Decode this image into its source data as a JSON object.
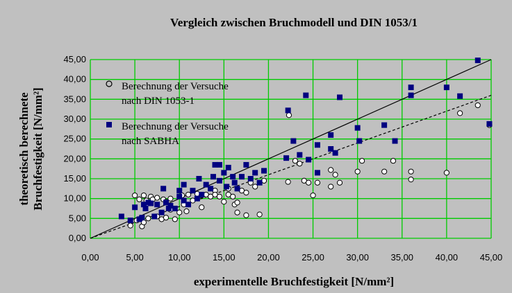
{
  "chart_data": {
    "type": "scatter",
    "title": "Vergleich zwischen Bruchmodell und DIN 1053/1",
    "xlabel": "experimentelle Bruchfestigkeit [N/mm²]",
    "ylabel_lines": [
      "theoretisch berechnete",
      "Bruchfestigkeit [N/mm²]"
    ],
    "xlim": [
      0,
      45
    ],
    "ylim": [
      0,
      45
    ],
    "x_ticks": [
      "0,00",
      "5,00",
      "10,00",
      "15,00",
      "20,00",
      "25,00",
      "30,00",
      "35,00",
      "40,00",
      "45,00"
    ],
    "y_ticks": [
      "0,00",
      "5,00",
      "10,00",
      "15,00",
      "20,00",
      "25,00",
      "30,00",
      "35,00",
      "40,00",
      "45,00"
    ],
    "grid": true,
    "grid_color": "#00cc00",
    "plot_background": "#c0c0c0",
    "legend_position": "top-left",
    "series": [
      {
        "name_lines": [
          "Berechnung der Versuche",
          "nach DIN 1053-1"
        ],
        "marker": "circle-open",
        "color": "#000000",
        "points": [
          [
            4.5,
            3.2
          ],
          [
            5.0,
            10.8
          ],
          [
            5.2,
            4.5
          ],
          [
            5.5,
            9.8
          ],
          [
            5.8,
            3.0
          ],
          [
            6.0,
            4.0
          ],
          [
            6.0,
            10.8
          ],
          [
            6.3,
            9.5
          ],
          [
            6.5,
            5.0
          ],
          [
            6.8,
            10.5
          ],
          [
            7.0,
            9.8
          ],
          [
            7.5,
            5.5
          ],
          [
            7.5,
            10.2
          ],
          [
            8.0,
            4.8
          ],
          [
            8.2,
            9.8
          ],
          [
            8.5,
            9.2
          ],
          [
            8.5,
            5.2
          ],
          [
            9.0,
            7.2
          ],
          [
            9.0,
            10.0
          ],
          [
            9.5,
            4.8
          ],
          [
            10.0,
            6.5
          ],
          [
            10.3,
            10.8
          ],
          [
            10.5,
            8.5
          ],
          [
            10.8,
            6.8
          ],
          [
            11.0,
            11.0
          ],
          [
            11.5,
            9.5
          ],
          [
            12.0,
            11.2
          ],
          [
            12.5,
            7.8
          ],
          [
            12.5,
            10.8
          ],
          [
            13.0,
            11.0
          ],
          [
            13.5,
            10.5
          ],
          [
            14.0,
            12.0
          ],
          [
            14.0,
            11.0
          ],
          [
            14.5,
            10.5
          ],
          [
            15.0,
            9.2
          ],
          [
            15.5,
            11.0
          ],
          [
            15.5,
            12.5
          ],
          [
            16.0,
            10.5
          ],
          [
            16.2,
            8.5
          ],
          [
            16.5,
            6.5
          ],
          [
            16.5,
            9.0
          ],
          [
            17.0,
            12.0
          ],
          [
            17.5,
            11.5
          ],
          [
            17.5,
            5.8
          ],
          [
            18.0,
            14.0
          ],
          [
            18.5,
            13.0
          ],
          [
            19.0,
            6.0
          ],
          [
            19.5,
            14.5
          ],
          [
            22.2,
            14.2
          ],
          [
            22.3,
            31.0
          ],
          [
            23.0,
            19.5
          ],
          [
            23.5,
            18.8
          ],
          [
            24.0,
            14.5
          ],
          [
            24.5,
            14.0
          ],
          [
            25.0,
            10.8
          ],
          [
            25.5,
            14.0
          ],
          [
            27.0,
            17.2
          ],
          [
            27.0,
            13.0
          ],
          [
            27.5,
            16.0
          ],
          [
            28.0,
            14.0
          ],
          [
            30.0,
            16.8
          ],
          [
            30.5,
            19.5
          ],
          [
            33.0,
            16.8
          ],
          [
            34.0,
            19.5
          ],
          [
            36.0,
            16.8
          ],
          [
            36.0,
            14.8
          ],
          [
            40.0,
            16.5
          ],
          [
            41.5,
            31.5
          ],
          [
            43.5,
            33.5
          ],
          [
            44.8,
            28.5
          ]
        ]
      },
      {
        "name_lines": [
          "Berechnung der Versuche",
          "nach SABHA"
        ],
        "marker": "square-filled",
        "color": "#000080",
        "points": [
          [
            3.5,
            5.5
          ],
          [
            4.5,
            4.5
          ],
          [
            5.0,
            7.8
          ],
          [
            5.5,
            4.8
          ],
          [
            5.8,
            5.2
          ],
          [
            6.0,
            8.5
          ],
          [
            6.2,
            7.5
          ],
          [
            6.5,
            9.0
          ],
          [
            6.8,
            8.8
          ],
          [
            7.2,
            5.5
          ],
          [
            7.5,
            8.5
          ],
          [
            8.0,
            6.5
          ],
          [
            8.2,
            12.5
          ],
          [
            8.5,
            9.0
          ],
          [
            8.8,
            7.5
          ],
          [
            9.0,
            8.2
          ],
          [
            9.5,
            7.5
          ],
          [
            10.0,
            10.5
          ],
          [
            10.0,
            12.0
          ],
          [
            10.5,
            9.5
          ],
          [
            10.5,
            13.5
          ],
          [
            11.0,
            8.5
          ],
          [
            11.5,
            12.0
          ],
          [
            12.0,
            10.0
          ],
          [
            12.2,
            15.0
          ],
          [
            12.5,
            11.0
          ],
          [
            13.0,
            13.5
          ],
          [
            13.5,
            12.5
          ],
          [
            13.8,
            15.5
          ],
          [
            14.0,
            18.5
          ],
          [
            14.5,
            18.5
          ],
          [
            14.5,
            14.5
          ],
          [
            15.0,
            16.5
          ],
          [
            15.3,
            13.0
          ],
          [
            15.5,
            17.8
          ],
          [
            16.0,
            15.5
          ],
          [
            16.2,
            14.0
          ],
          [
            16.5,
            12.5
          ],
          [
            17.0,
            15.5
          ],
          [
            17.5,
            18.5
          ],
          [
            18.0,
            15.0
          ],
          [
            18.5,
            16.5
          ],
          [
            19.0,
            14.0
          ],
          [
            19.5,
            17.0
          ],
          [
            22.0,
            20.2
          ],
          [
            22.2,
            32.2
          ],
          [
            22.8,
            24.5
          ],
          [
            23.5,
            21.0
          ],
          [
            24.2,
            36.0
          ],
          [
            24.5,
            19.8
          ],
          [
            25.5,
            16.5
          ],
          [
            25.5,
            23.5
          ],
          [
            27.0,
            22.5
          ],
          [
            27.0,
            26.0
          ],
          [
            27.5,
            21.5
          ],
          [
            28.0,
            35.5
          ],
          [
            30.0,
            27.8
          ],
          [
            30.2,
            24.5
          ],
          [
            33.0,
            28.5
          ],
          [
            34.2,
            24.5
          ],
          [
            36.0,
            38.0
          ],
          [
            36.0,
            36.0
          ],
          [
            40.0,
            38.0
          ],
          [
            41.5,
            35.8
          ],
          [
            43.5,
            44.8
          ],
          [
            44.8,
            28.8
          ]
        ]
      }
    ],
    "reference_lines": [
      {
        "style": "solid",
        "points": [
          [
            0,
            0
          ],
          [
            45,
            45
          ]
        ]
      },
      {
        "style": "dashed",
        "points": [
          [
            0,
            0
          ],
          [
            45,
            36
          ]
        ]
      }
    ]
  }
}
